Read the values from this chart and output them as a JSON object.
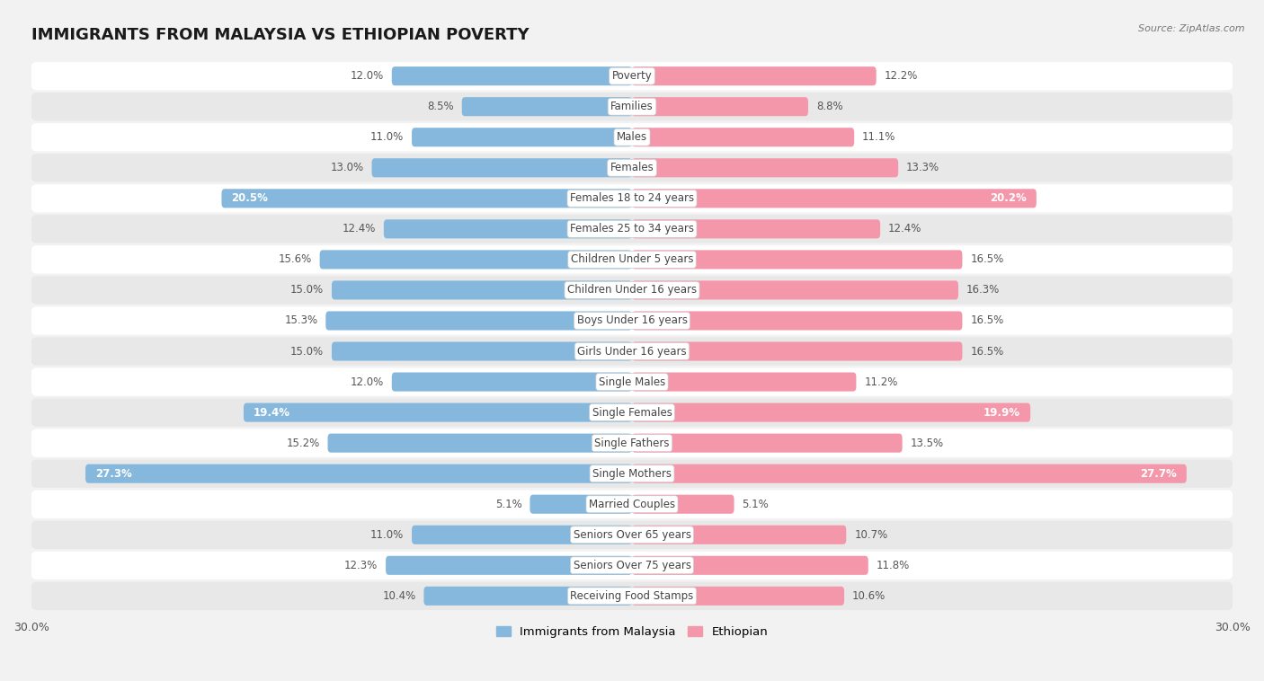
{
  "title": "IMMIGRANTS FROM MALAYSIA VS ETHIOPIAN POVERTY",
  "source": "Source: ZipAtlas.com",
  "categories": [
    "Poverty",
    "Families",
    "Males",
    "Females",
    "Females 18 to 24 years",
    "Females 25 to 34 years",
    "Children Under 5 years",
    "Children Under 16 years",
    "Boys Under 16 years",
    "Girls Under 16 years",
    "Single Males",
    "Single Females",
    "Single Fathers",
    "Single Mothers",
    "Married Couples",
    "Seniors Over 65 years",
    "Seniors Over 75 years",
    "Receiving Food Stamps"
  ],
  "malaysia_values": [
    12.0,
    8.5,
    11.0,
    13.0,
    20.5,
    12.4,
    15.6,
    15.0,
    15.3,
    15.0,
    12.0,
    19.4,
    15.2,
    27.3,
    5.1,
    11.0,
    12.3,
    10.4
  ],
  "ethiopian_values": [
    12.2,
    8.8,
    11.1,
    13.3,
    20.2,
    12.4,
    16.5,
    16.3,
    16.5,
    16.5,
    11.2,
    19.9,
    13.5,
    27.7,
    5.1,
    10.7,
    11.8,
    10.6
  ],
  "malaysia_color": "#85b8dc",
  "ethiopian_color": "#f497aa",
  "malaysia_label": "Immigrants from Malaysia",
  "ethiopian_label": "Ethiopian",
  "background_color": "#f2f2f2",
  "row_bg_light": "#ffffff",
  "row_bg_dark": "#e8e8e8",
  "max_val": 30.0,
  "title_fontsize": 13,
  "label_fontsize": 8.5,
  "tick_fontsize": 9,
  "white_label_threshold": 18.0
}
